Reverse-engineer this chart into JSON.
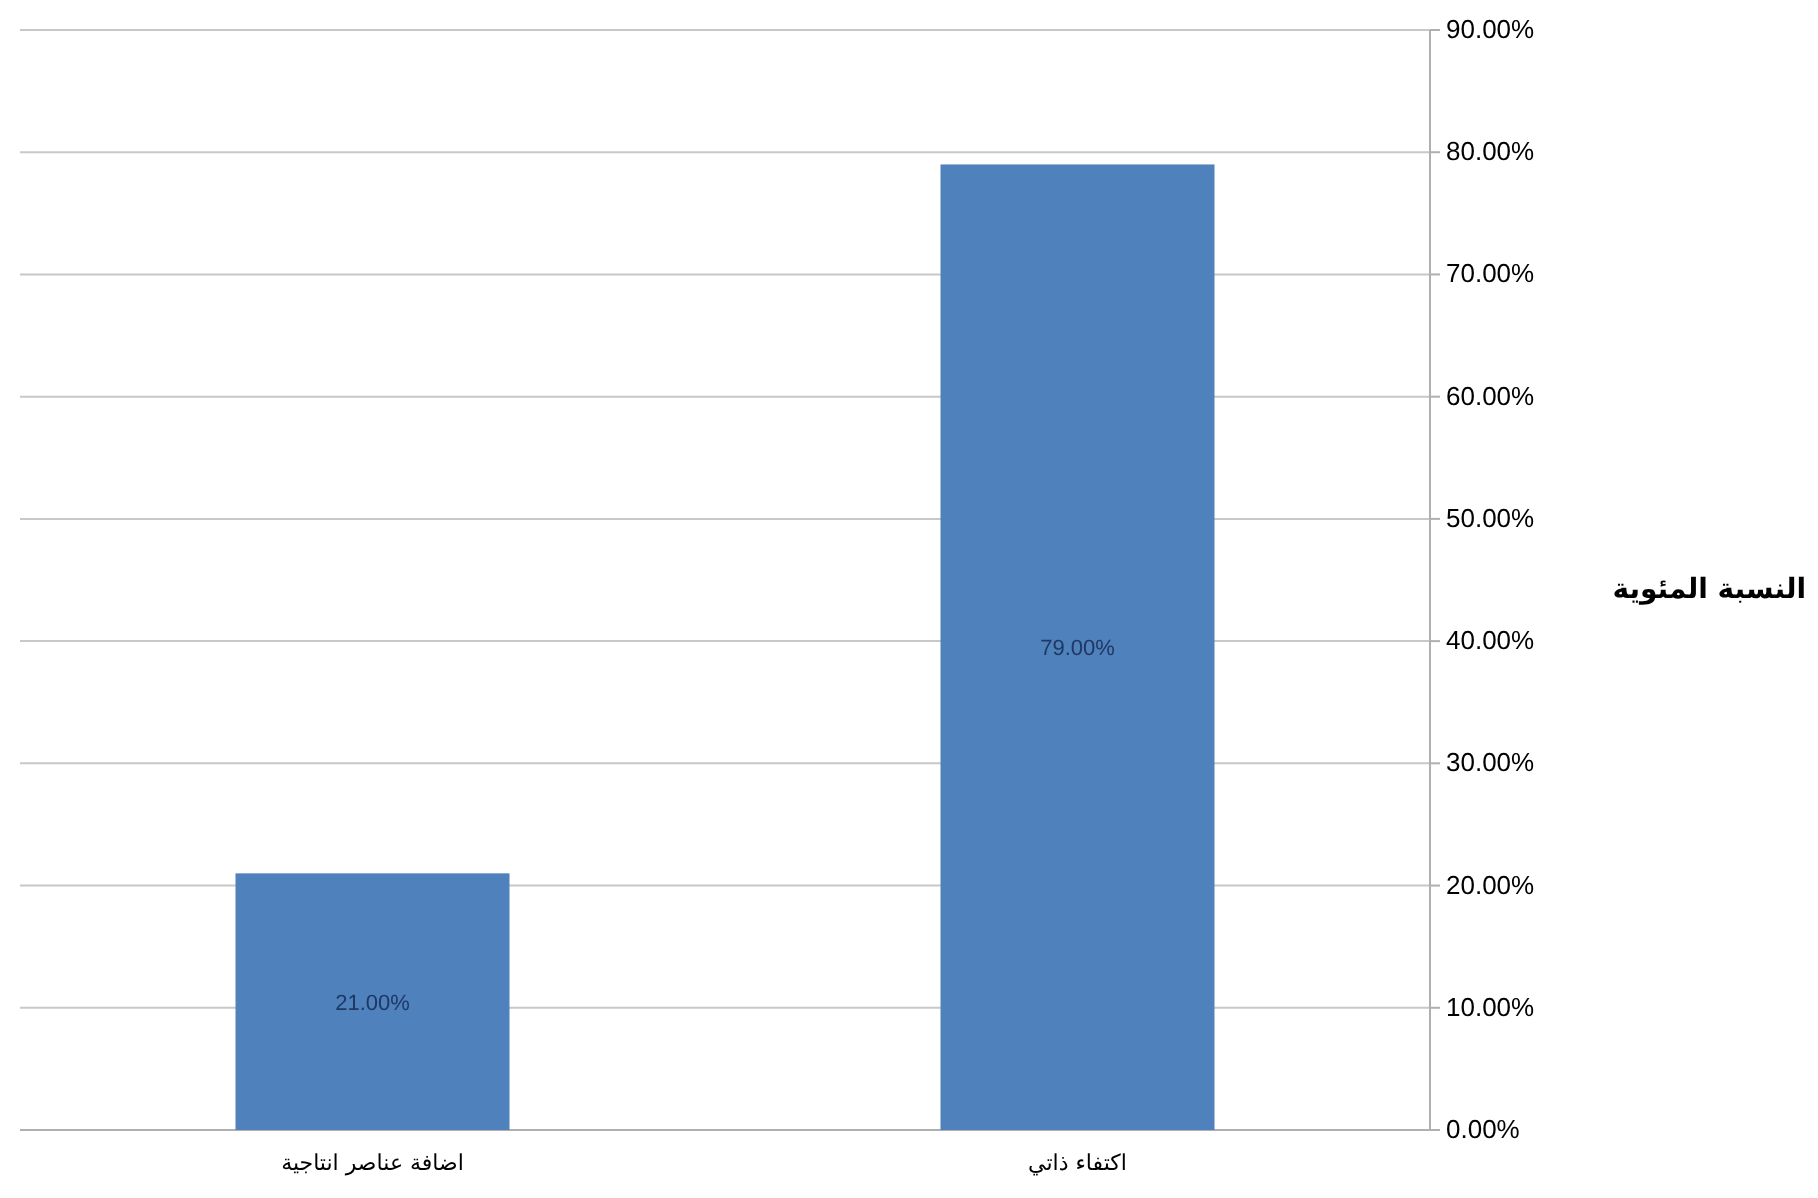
{
  "chart_data": {
    "type": "bar",
    "ylabel": "النسبة المئوية",
    "categories": [
      "اضافة عناصر انتاجية",
      "اكتفاء ذاتي"
    ],
    "values": [
      21,
      79
    ],
    "value_labels": [
      "21.00%",
      "79.00%"
    ],
    "color": "#4f81bd",
    "ylim": [
      0,
      90
    ],
    "yticks": [
      {
        "value": 0,
        "label": "0.00%"
      },
      {
        "value": 10,
        "label": "10.00%"
      },
      {
        "value": 20,
        "label": "20.00%"
      },
      {
        "value": 30,
        "label": "30.00%"
      },
      {
        "value": 40,
        "label": "40.00%"
      },
      {
        "value": 50,
        "label": "50.00%"
      },
      {
        "value": 60,
        "label": "60.00%"
      },
      {
        "value": 70,
        "label": "70.00%"
      },
      {
        "value": 80,
        "label": "80.00%"
      },
      {
        "value": 90,
        "label": "90.00%"
      }
    ],
    "grid": "y"
  }
}
